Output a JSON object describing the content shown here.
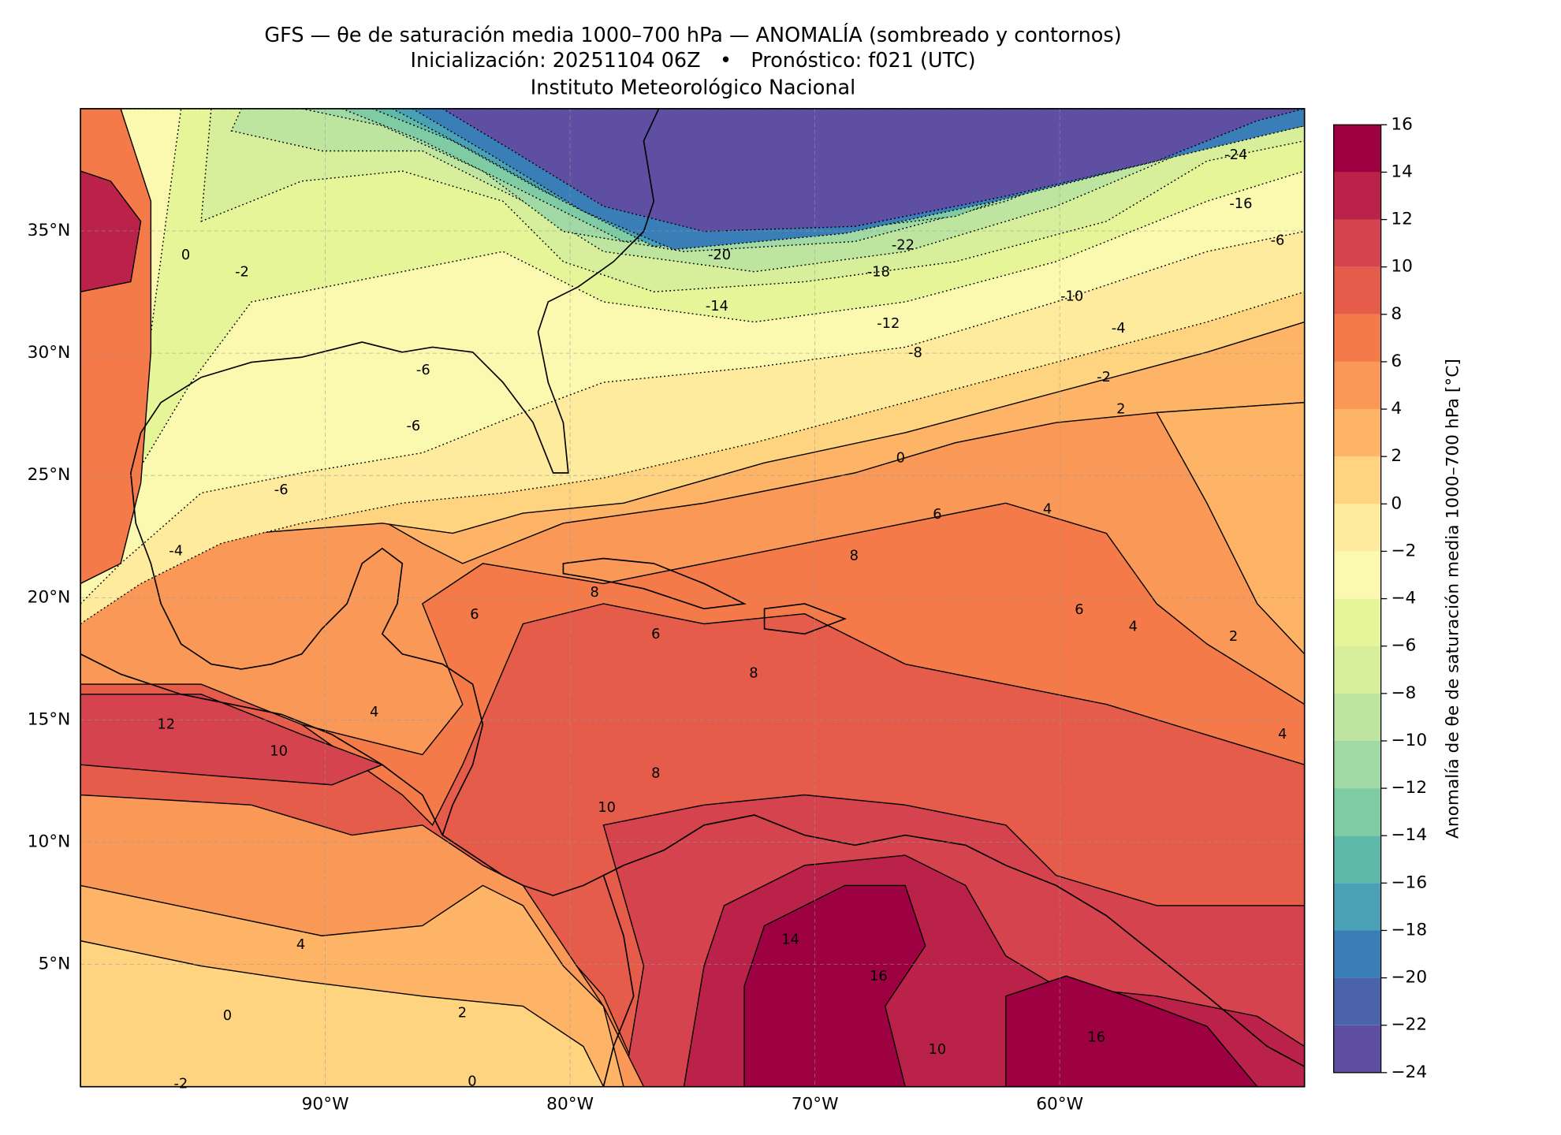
{
  "title": {
    "line1": "GFS — θe de saturación media 1000–700 hPa — ANOMALÍA (sombreado y contornos)",
    "line2": "Inicialización: 20251104 06Z   •   Pronóstico: f021 (UTC)",
    "line3": "Instituto Meteorológico Nacional"
  },
  "map": {
    "xlim": [
      -100,
      -50
    ],
    "ylim": [
      0,
      40
    ],
    "grid": true,
    "xticks": [
      {
        "value": -90,
        "label": "90°W"
      },
      {
        "value": -80,
        "label": "80°W"
      },
      {
        "value": -70,
        "label": "70°W"
      },
      {
        "value": -60,
        "label": "60°W"
      }
    ],
    "yticks": [
      {
        "value": 5,
        "label": "5°N"
      },
      {
        "value": 10,
        "label": "10°N"
      },
      {
        "value": 15,
        "label": "15°N"
      },
      {
        "value": 20,
        "label": "20°N"
      },
      {
        "value": 25,
        "label": "25°N"
      },
      {
        "value": 30,
        "label": "30°N"
      },
      {
        "value": 35,
        "label": "35°N"
      }
    ],
    "contour_labels": [
      {
        "label": "-24",
        "lon": -52.8,
        "lat": 38.1
      },
      {
        "label": "-16",
        "lon": -52.6,
        "lat": 36.1
      },
      {
        "label": "-6",
        "lon": -51.1,
        "lat": 34.6
      },
      {
        "label": "-22",
        "lon": -66.4,
        "lat": 34.4
      },
      {
        "label": "-20",
        "lon": -73.9,
        "lat": 34.0
      },
      {
        "label": "-18",
        "lon": -67.4,
        "lat": 33.3
      },
      {
        "label": "-14",
        "lon": -74.0,
        "lat": 31.9
      },
      {
        "label": "-12",
        "lon": -67.0,
        "lat": 31.2
      },
      {
        "label": "-10",
        "lon": -59.5,
        "lat": 32.3
      },
      {
        "label": "-8",
        "lon": -65.9,
        "lat": 30.0
      },
      {
        "label": "-4",
        "lon": -57.6,
        "lat": 31.0
      },
      {
        "label": "-2",
        "lon": -58.2,
        "lat": 29.0
      },
      {
        "label": "2",
        "lon": -57.5,
        "lat": 27.7
      },
      {
        "label": "0",
        "lon": -66.5,
        "lat": 25.7
      },
      {
        "label": "-6",
        "lon": -86.0,
        "lat": 29.3
      },
      {
        "label": "-6",
        "lon": -86.4,
        "lat": 27.0
      },
      {
        "label": "-6",
        "lon": -91.8,
        "lat": 24.4
      },
      {
        "label": "-4",
        "lon": -96.1,
        "lat": 21.9
      },
      {
        "label": "-2",
        "lon": -93.4,
        "lat": 33.3
      },
      {
        "label": "0",
        "lon": -95.7,
        "lat": 34.0
      },
      {
        "label": "6",
        "lon": -65.0,
        "lat": 23.4
      },
      {
        "label": "4",
        "lon": -60.5,
        "lat": 23.6
      },
      {
        "label": "8",
        "lon": -68.4,
        "lat": 21.7
      },
      {
        "label": "6",
        "lon": -83.9,
        "lat": 19.3
      },
      {
        "label": "8",
        "lon": -79.0,
        "lat": 20.2
      },
      {
        "label": "6",
        "lon": -76.5,
        "lat": 18.5
      },
      {
        "label": "8",
        "lon": -72.5,
        "lat": 16.9
      },
      {
        "label": "4",
        "lon": -88.0,
        "lat": 15.3
      },
      {
        "label": "12",
        "lon": -96.5,
        "lat": 14.8
      },
      {
        "label": "10",
        "lon": -91.9,
        "lat": 13.7
      },
      {
        "label": "10",
        "lon": -78.5,
        "lat": 11.4
      },
      {
        "label": "8",
        "lon": -76.5,
        "lat": 12.8
      },
      {
        "label": "14",
        "lon": -71.0,
        "lat": 6.0
      },
      {
        "label": "16",
        "lon": -67.4,
        "lat": 4.5
      },
      {
        "label": "16",
        "lon": -58.5,
        "lat": 2.0
      },
      {
        "label": "10",
        "lon": -65.0,
        "lat": 1.5
      },
      {
        "label": "4",
        "lon": -91.0,
        "lat": 5.8
      },
      {
        "label": "2",
        "lon": -84.4,
        "lat": 3.0
      },
      {
        "label": "0",
        "lon": -94.0,
        "lat": 2.9
      },
      {
        "label": "0",
        "lon": -84.0,
        "lat": 0.2
      },
      {
        "label": "-2",
        "lon": -95.9,
        "lat": 0.1
      },
      {
        "label": "4",
        "lon": -50.9,
        "lat": 14.4
      },
      {
        "label": "2",
        "lon": -52.9,
        "lat": 18.4
      },
      {
        "label": "6",
        "lon": -59.2,
        "lat": 19.5
      },
      {
        "label": "4",
        "lon": -57.0,
        "lat": 18.8
      }
    ]
  },
  "colorbar": {
    "label": "Anomalía de θe de saturación media 1000–700 hPa [°C]",
    "levels": [
      -24,
      -22,
      -20,
      -18,
      -16,
      -14,
      -12,
      -10,
      -8,
      -6,
      -4,
      -2,
      0,
      2,
      4,
      6,
      8,
      10,
      12,
      14,
      16
    ],
    "colors": [
      "#5e4fa2",
      "#4a63ab",
      "#3a7eb8",
      "#4aa0b4",
      "#5fb9a9",
      "#7fcba4",
      "#a0d9a4",
      "#bde5a0",
      "#d7ef9b",
      "#e6f598",
      "#fbf8b0",
      "#feeb9d",
      "#fed481",
      "#fdb466",
      "#fa9858",
      "#f47a4a",
      "#e55d4a",
      "#d4434e",
      "#bb2249",
      "#9e0142"
    ],
    "ticks": [
      {
        "value": -24,
        "label": "−24"
      },
      {
        "value": -22,
        "label": "−22"
      },
      {
        "value": -20,
        "label": "−20"
      },
      {
        "value": -18,
        "label": "−18"
      },
      {
        "value": -16,
        "label": "−16"
      },
      {
        "value": -14,
        "label": "−14"
      },
      {
        "value": -12,
        "label": "−12"
      },
      {
        "value": -10,
        "label": "−10"
      },
      {
        "value": -8,
        "label": "−8"
      },
      {
        "value": -6,
        "label": "−6"
      },
      {
        "value": -4,
        "label": "−4"
      },
      {
        "value": -2,
        "label": "−2"
      },
      0,
      2,
      4,
      6,
      8,
      10,
      12,
      14,
      16
    ]
  }
}
